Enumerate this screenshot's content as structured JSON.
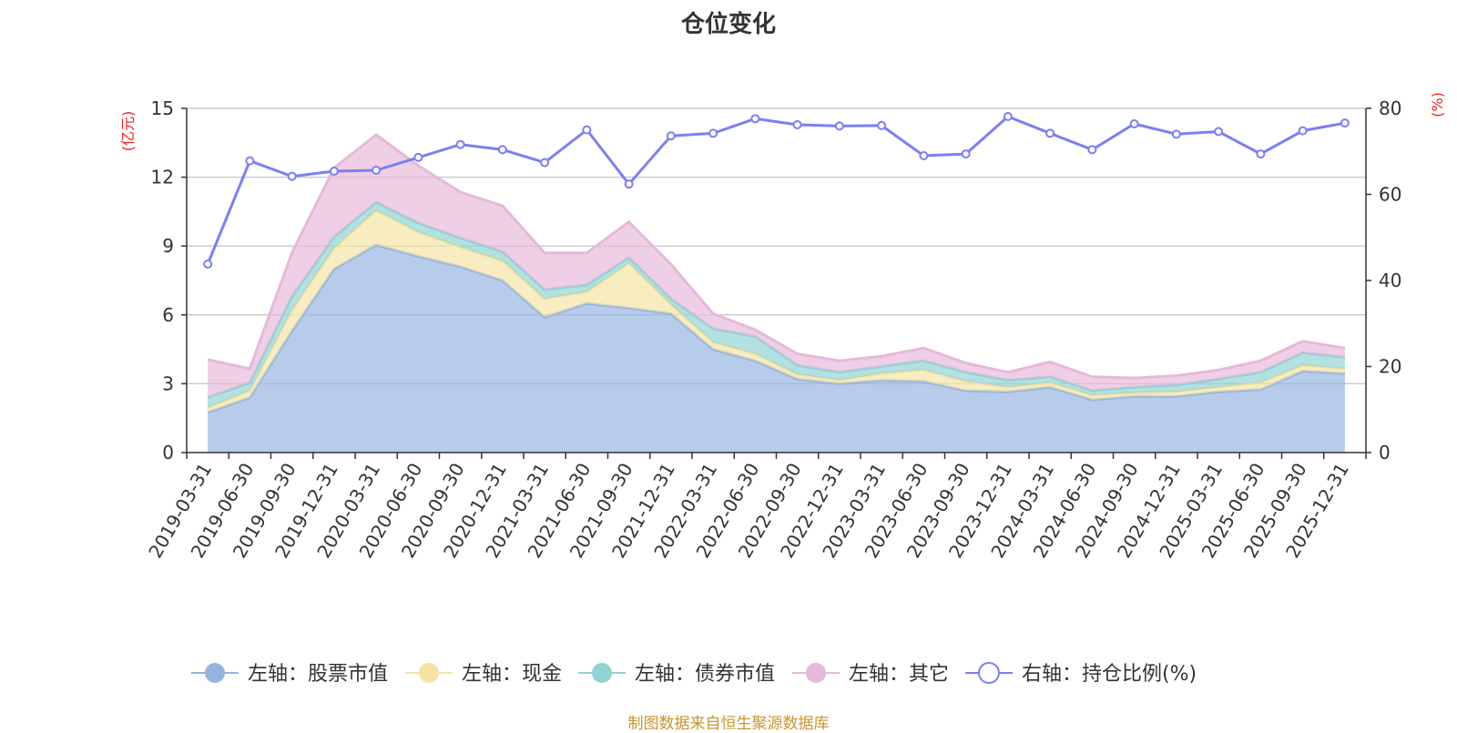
{
  "chart_data": {
    "type": "area",
    "title": "仓位变化",
    "source_note": "制图数据来自恒生聚源数据库",
    "left_axis": {
      "unit": "(亿元)",
      "min": 0,
      "max": 15,
      "ticks": [
        0,
        3,
        6,
        9,
        12,
        15
      ]
    },
    "right_axis": {
      "unit": "(%)",
      "min": 0,
      "max": 80,
      "ticks": [
        0,
        20,
        40,
        60,
        80
      ]
    },
    "categories": [
      "2019-03-31",
      "2019-06-30",
      "2019-09-30",
      "2019-12-31",
      "2020-03-31",
      "2020-06-30",
      "2020-09-30",
      "2020-12-31",
      "2021-03-31",
      "2021-06-30",
      "2021-09-30",
      "2021-12-31",
      "2022-03-31",
      "2022-06-30",
      "2022-09-30",
      "2022-12-31",
      "2023-03-31",
      "2023-06-30",
      "2023-09-30",
      "2023-12-31",
      "2024-03-31",
      "2024-06-30",
      "2024-09-30",
      "2024-12-31",
      "2025-03-31",
      "2025-06-30",
      "2025-09-30",
      "2025-12-31"
    ],
    "series": [
      {
        "name": "左轴：股票市值",
        "axis": "left",
        "kind": "stacked-area",
        "color": "#94b4e0",
        "values": [
          1.75,
          2.4,
          5.3,
          8.0,
          9.05,
          8.55,
          8.1,
          7.5,
          5.9,
          6.5,
          6.3,
          6.05,
          4.5,
          4.0,
          3.2,
          3.0,
          3.15,
          3.1,
          2.7,
          2.65,
          2.85,
          2.3,
          2.45,
          2.45,
          2.65,
          2.75,
          3.55,
          3.45
        ]
      },
      {
        "name": "左轴：现金",
        "axis": "left",
        "kind": "stacked-area",
        "color": "#f5e3a3",
        "values": [
          0.2,
          0.3,
          0.9,
          0.9,
          1.5,
          1.05,
          0.85,
          0.85,
          0.8,
          0.5,
          1.95,
          0.4,
          0.3,
          0.3,
          0.2,
          0.15,
          0.3,
          0.5,
          0.4,
          0.2,
          0.2,
          0.2,
          0.15,
          0.2,
          0.2,
          0.3,
          0.25,
          0.2
        ]
      },
      {
        "name": "左轴：债券市值",
        "axis": "left",
        "kind": "stacked-area",
        "color": "#8fd3d3",
        "values": [
          0.45,
          0.35,
          0.6,
          0.5,
          0.35,
          0.4,
          0.4,
          0.4,
          0.4,
          0.3,
          0.25,
          0.25,
          0.6,
          0.75,
          0.4,
          0.35,
          0.3,
          0.4,
          0.4,
          0.3,
          0.25,
          0.2,
          0.25,
          0.3,
          0.35,
          0.45,
          0.55,
          0.5
        ]
      },
      {
        "name": "左轴：其它",
        "axis": "left",
        "kind": "stacked-area",
        "color": "#e6b8da",
        "values": [
          1.65,
          0.6,
          1.9,
          3.0,
          2.95,
          2.5,
          2.0,
          2.0,
          1.6,
          1.4,
          1.55,
          1.5,
          0.65,
          0.3,
          0.5,
          0.5,
          0.45,
          0.55,
          0.4,
          0.35,
          0.65,
          0.6,
          0.4,
          0.4,
          0.4,
          0.5,
          0.5,
          0.4
        ]
      },
      {
        "name": "右轴：持仓比例(%)",
        "axis": "right",
        "kind": "line",
        "color": "#7b7ff5",
        "values": [
          43.8,
          67.8,
          64.2,
          65.4,
          65.6,
          68.6,
          71.6,
          70.4,
          67.4,
          75.0,
          62.4,
          73.6,
          74.2,
          77.6,
          76.2,
          75.9,
          76.0,
          69.0,
          69.4,
          78.1,
          74.2,
          70.4,
          76.4,
          74.0,
          74.6,
          69.4,
          74.8,
          76.6
        ]
      }
    ],
    "legend_position": "bottom",
    "grid": true
  }
}
